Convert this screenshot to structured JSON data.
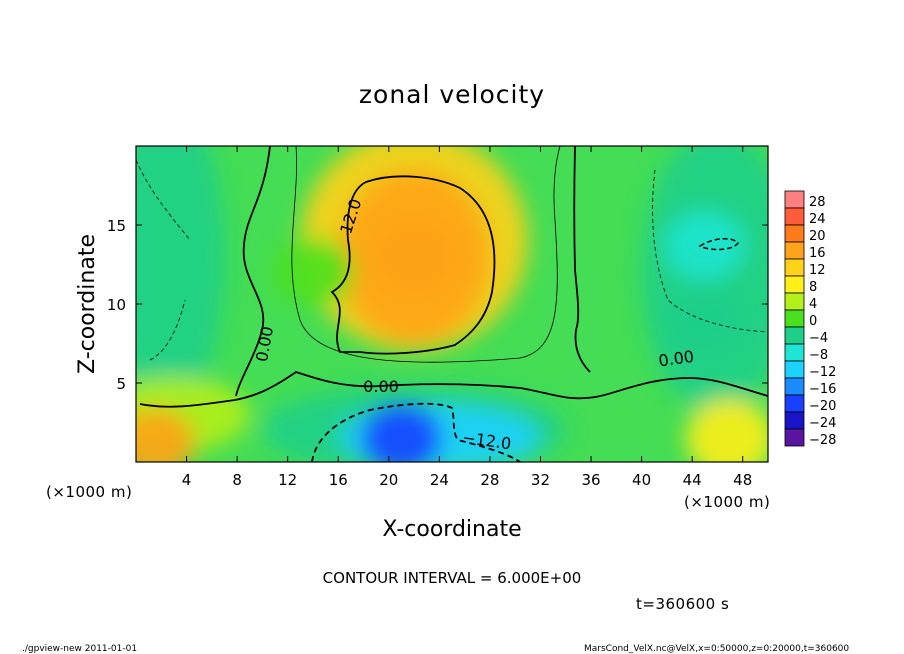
{
  "chart_data": {
    "type": "heatmap",
    "title": "zonal velocity",
    "xlabel": "X-coordinate",
    "ylabel": "Z-coordinate",
    "x_unit": "(×1000 m)",
    "y_unit": "(×1000 m)",
    "xlim": [
      0,
      50
    ],
    "ylim": [
      0,
      20
    ],
    "x_ticks": [
      4,
      8,
      12,
      16,
      20,
      24,
      28,
      32,
      36,
      40,
      44,
      48
    ],
    "y_ticks": [
      5,
      10,
      15
    ],
    "colorbar": {
      "levels": [
        28,
        24,
        20,
        16,
        12,
        8,
        4,
        0,
        -4,
        -8,
        -12,
        -16,
        -20,
        -24,
        -28
      ],
      "colors": [
        "#ff8080",
        "#ff5c3a",
        "#ff7a1a",
        "#ffa31a",
        "#ffd21a",
        "#fff01a",
        "#b4f01a",
        "#4be01e",
        "#1ecf8a",
        "#1ee6d2",
        "#1ed2ff",
        "#1a8cff",
        "#1a40ff",
        "#1a14c8",
        "#5a14a0"
      ]
    },
    "contour_labels": [
      "12.0",
      "0.00",
      "0.00",
      "0.00",
      "-12.0"
    ],
    "field_features": [
      {
        "kind": "max",
        "x": 22,
        "z": 13,
        "value": 15
      },
      {
        "kind": "min",
        "x": 21,
        "z": 1.5,
        "value": -22
      },
      {
        "kind": "min",
        "x": 45,
        "z": 13.7,
        "value": -12
      },
      {
        "kind": "max",
        "x": 1.5,
        "z": 1.2,
        "value": 12
      },
      {
        "kind": "min",
        "x": 14,
        "z": 12,
        "value": -2
      },
      {
        "kind": "min",
        "x": 45,
        "z": 9,
        "value": -8
      }
    ],
    "contour_interval_text": "CONTOUR INTERVAL = 6.000E+00",
    "time_text": "t=360600 s"
  },
  "footer": {
    "left": "./gpview-new   2011-01-01",
    "right": "MarsCond_VelX.nc@VelX,x=0:50000,z=0:20000,t=360600"
  }
}
